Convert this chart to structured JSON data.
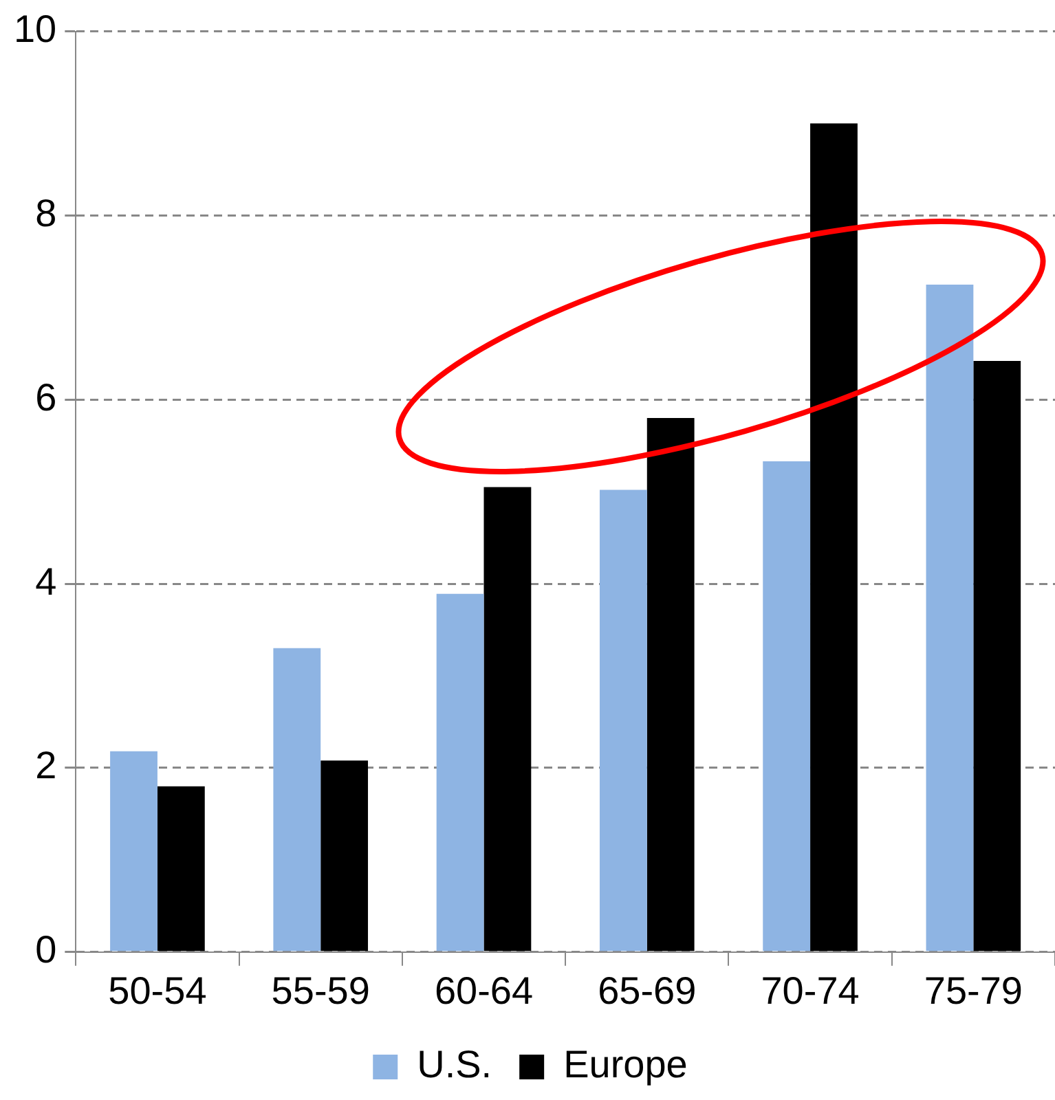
{
  "chart_data": {
    "type": "bar",
    "categories": [
      "50-54",
      "55-59",
      "60-64",
      "65-69",
      "70-74",
      "75-79"
    ],
    "series": [
      {
        "name": "U.S.",
        "color": "#8eb4e3",
        "values": [
          2.18,
          3.3,
          3.89,
          5.02,
          5.33,
          7.25
        ]
      },
      {
        "name": "Europe",
        "color": "#000000",
        "values": [
          1.8,
          2.08,
          5.05,
          5.8,
          9.0,
          6.42
        ]
      }
    ],
    "ylim": [
      0,
      10
    ],
    "yticks": [
      0,
      2,
      4,
      6,
      8,
      10
    ],
    "grid": "y",
    "legend": "bottom"
  }
}
